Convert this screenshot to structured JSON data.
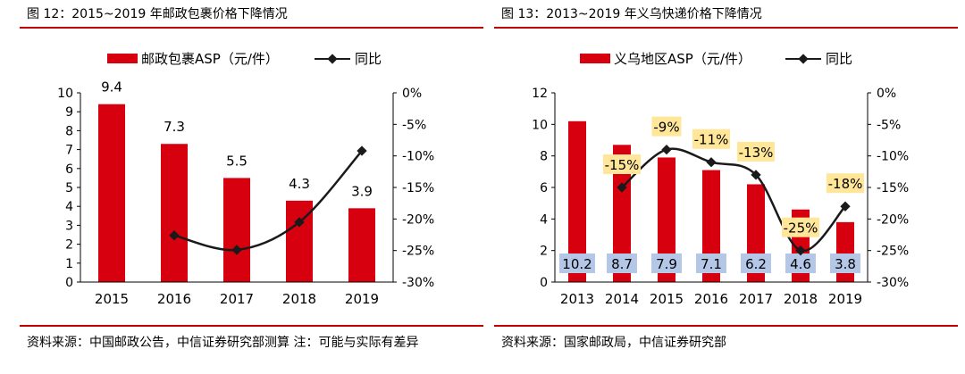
{
  "charts": [
    {
      "title": "图 12：2015~2019 年邮政包裹价格下降情况",
      "source": "资料来源：中国邮政公告，中信证券研究部测算 注：可能与实际有差异",
      "chart_data": {
        "type": "bar",
        "categories": [
          "2015",
          "2016",
          "2017",
          "2018",
          "2019"
        ],
        "series": [
          {
            "name": "邮政包裹ASP（元/件）",
            "type": "bar",
            "axis": "left",
            "color": "#d7000f",
            "values": [
              9.4,
              7.3,
              5.5,
              4.3,
              3.9
            ]
          },
          {
            "name": "同比",
            "type": "line",
            "axis": "right",
            "color": "#1a1a1a",
            "values": [
              null,
              -22.6,
              -24.9,
              -20.5,
              -9.2
            ]
          }
        ],
        "data_labels": [
          "9.4",
          "7.3",
          "5.5",
          "4.3",
          "3.9"
        ],
        "left_axis": {
          "ticks": [
            "0",
            "1",
            "2",
            "3",
            "4",
            "5",
            "6",
            "7",
            "8",
            "9",
            "10"
          ],
          "range": [
            0,
            10
          ]
        },
        "right_axis": {
          "ticks": [
            "0%",
            "-5%",
            "-10%",
            "-15%",
            "-20%",
            "-25%",
            "-30%"
          ],
          "range": [
            -30,
            0
          ]
        },
        "legend_position": "top",
        "grid": false
      }
    },
    {
      "title": "图 13：2013~2019 年义乌快递价格下降情况",
      "source": "资料来源：国家邮政局，中信证券研究部",
      "chart_data": {
        "type": "bar",
        "categories": [
          "2013",
          "2014",
          "2015",
          "2016",
          "2017",
          "2018",
          "2019"
        ],
        "series": [
          {
            "name": "义乌地区ASP（元/件）",
            "type": "bar",
            "axis": "left",
            "color": "#d7000f",
            "values": [
              10.2,
              8.7,
              7.9,
              7.1,
              6.2,
              4.6,
              3.8
            ]
          },
          {
            "name": "同比",
            "type": "line",
            "axis": "right",
            "color": "#1a1a1a",
            "values": [
              null,
              -15,
              -9,
              -11,
              -13,
              -25,
              -18
            ]
          }
        ],
        "bar_value_labels": [
          "10.2",
          "8.7",
          "7.9",
          "7.1",
          "6.2",
          "4.6",
          "3.8"
        ],
        "bar_label_box_color": "#b4c7e7",
        "line_value_labels": [
          "",
          "-15%",
          "-9%",
          "-11%",
          "-13%",
          "-25%",
          "-18%"
        ],
        "line_label_box_color": "#ffe699",
        "left_axis": {
          "ticks": [
            "0",
            "2",
            "4",
            "6",
            "8",
            "10",
            "12"
          ],
          "range": [
            0,
            12
          ]
        },
        "right_axis": {
          "ticks": [
            "0%",
            "-5%",
            "-10%",
            "-15%",
            "-20%",
            "-25%",
            "-30%"
          ],
          "range": [
            -30,
            0
          ]
        },
        "legend_position": "top",
        "grid": false
      }
    }
  ]
}
